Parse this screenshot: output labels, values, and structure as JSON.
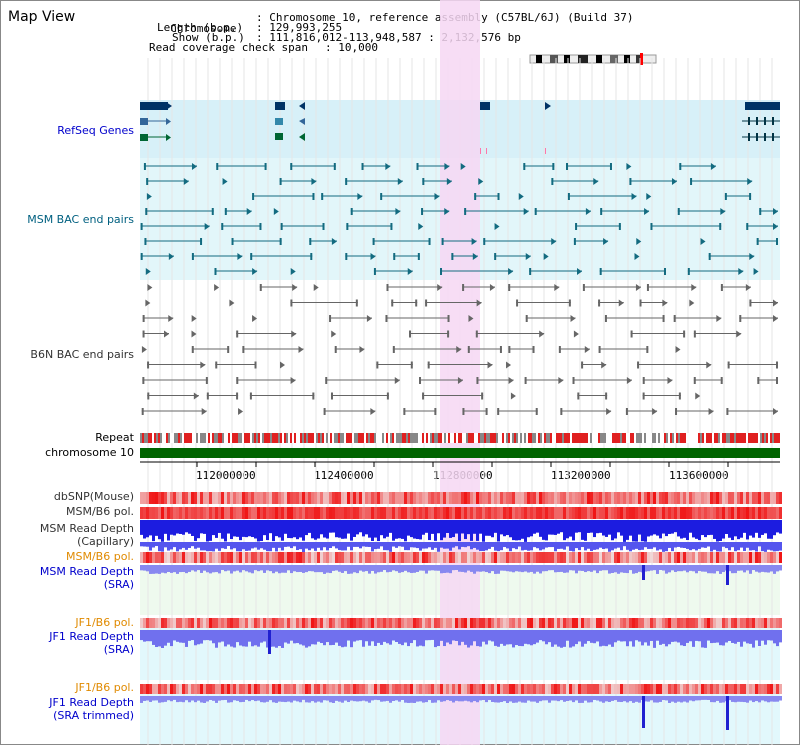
{
  "view_title": "Map View",
  "info": {
    "chromosome_label": "Chromosome",
    "chromosome_value": "Chromosome 10, reference assembly (C57BL/6J) (Build 37)",
    "length_label": "Length (b.p.)",
    "length_value": "129,993,255",
    "show_label": "Show (b.p.)",
    "show_value": "111,816,012-113,948,587 : 2,132,576 bp",
    "coverage_label": "Read coverage check span",
    "coverage_value": "10,000"
  },
  "tracks": {
    "refseq": "RefSeq Genes",
    "msm_bac": "MSM BAC end pairs",
    "b6n_bac": "B6N BAC end pairs",
    "repeat": "Repeat",
    "chromosome": "chromosome 10",
    "dbsnp": "dbSNP(Mouse)",
    "msm_b6_pol": "MSM/B6 pol.",
    "msm_read_depth_cap_1": "MSM Read Depth",
    "msm_read_depth_cap_2": "(Capillary)",
    "msm_b6_pol_2": "MSM/B6 pol.",
    "msm_read_depth_sra_1": "MSM Read Depth",
    "msm_read_depth_sra_2": "(SRA)",
    "jf1_b6_pol": "JF1/B6 pol.",
    "jf1_read_depth_1": "JF1 Read Depth",
    "jf1_read_depth_2": "(SRA)",
    "jf1_b6_pol_2": "JF1/B6 pol.",
    "jf1_read_depth_trim_1": "JF1 Read Depth",
    "jf1_read_depth_trim_2": "(SRA trimmed)"
  },
  "axis_ticks": [
    "112000000",
    "112400000",
    "112800000",
    "113200000",
    "113600000"
  ],
  "colors": {
    "highlight": "#f6d7f3",
    "refseq_bg": "#d7f0f8",
    "msm_bg": "#e2f6fa",
    "chromosome_bar": "#006400",
    "pol_red": "#e83030",
    "depth_blue": "#1c1ce0",
    "depth_light": "#8a8af0"
  }
}
